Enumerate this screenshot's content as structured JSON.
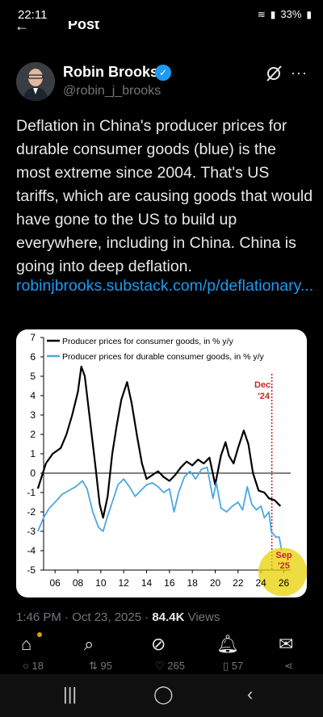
{
  "status": {
    "time": "22:11",
    "battery": "33%"
  },
  "header": {
    "title": "Post"
  },
  "author": {
    "name": "Robin Brooks",
    "handle": "@robin_j_brooks"
  },
  "tweet": {
    "text": "Deflation in China's producer prices for durable consumer goods (blue) is the most extreme since 2004. That's US tariffs, which are causing goods that would have gone to the US to build up everywhere, including in China. China is going into deep deflation.",
    "link": "robinjbrooks.substack.com/p/deflationary..."
  },
  "meta": {
    "time": "1:46 PM · Oct 23, 2025 · ",
    "views": "84.4K",
    "views_label": " Views"
  },
  "actions": {
    "replies": "18",
    "reposts": "95",
    "likes": "265",
    "bookmarks": "57"
  },
  "colors": {
    "accent": "#1d9bf0",
    "series1": "#000000",
    "series2": "#4aa8e0",
    "marker": "#c62828"
  },
  "chart_data": {
    "type": "line",
    "ylim": [
      -5,
      7
    ],
    "yticks": [
      7,
      6,
      5,
      4,
      3,
      2,
      1,
      0,
      -1,
      -2,
      -3,
      -4,
      -5
    ],
    "xticks": [
      "06",
      "08",
      "10",
      "12",
      "14",
      "16",
      "18",
      "20",
      "22",
      "24",
      "26"
    ],
    "series": [
      {
        "name": "Producer prices for consumer goods, in % y/y",
        "points": [
          [
            2004.5,
            -0.8
          ],
          [
            2005.2,
            0.5
          ],
          [
            2005.8,
            1.0
          ],
          [
            2006.5,
            1.3
          ],
          [
            2007.0,
            2.0
          ],
          [
            2007.5,
            3.0
          ],
          [
            2008.0,
            4.2
          ],
          [
            2008.3,
            5.5
          ],
          [
            2008.6,
            5.0
          ],
          [
            2009.0,
            3.0
          ],
          [
            2009.5,
            0.5
          ],
          [
            2009.9,
            -1.6
          ],
          [
            2010.2,
            -2.3
          ],
          [
            2010.6,
            -1.2
          ],
          [
            2011.0,
            1.0
          ],
          [
            2011.4,
            2.5
          ],
          [
            2011.8,
            3.8
          ],
          [
            2012.3,
            4.7
          ],
          [
            2012.7,
            3.6
          ],
          [
            2013.2,
            1.8
          ],
          [
            2013.6,
            0.5
          ],
          [
            2014.0,
            -0.3
          ],
          [
            2014.5,
            -0.1
          ],
          [
            2015.0,
            0.1
          ],
          [
            2015.5,
            -0.2
          ],
          [
            2016.0,
            -0.4
          ],
          [
            2016.5,
            -0.1
          ],
          [
            2017.0,
            0.3
          ],
          [
            2017.5,
            0.6
          ],
          [
            2018.0,
            0.4
          ],
          [
            2018.5,
            0.7
          ],
          [
            2019.0,
            0.5
          ],
          [
            2019.5,
            0.8
          ],
          [
            2020.0,
            -0.6
          ],
          [
            2020.5,
            0.9
          ],
          [
            2020.9,
            1.6
          ],
          [
            2021.2,
            0.9
          ],
          [
            2021.6,
            0.5
          ],
          [
            2022.0,
            1.3
          ],
          [
            2022.5,
            2.2
          ],
          [
            2022.9,
            1.5
          ],
          [
            2023.3,
            0.0
          ],
          [
            2023.8,
            -0.9
          ],
          [
            2024.3,
            -1.0
          ],
          [
            2024.7,
            -1.3
          ],
          [
            2025.2,
            -1.4
          ],
          [
            2025.7,
            -1.7
          ]
        ]
      },
      {
        "name": "Producer prices for durable consumer goods, in % y/y",
        "points": [
          [
            2004.5,
            -3.0
          ],
          [
            2005.0,
            -2.3
          ],
          [
            2005.5,
            -1.8
          ],
          [
            2006.0,
            -1.5
          ],
          [
            2006.6,
            -1.1
          ],
          [
            2007.2,
            -0.9
          ],
          [
            2007.8,
            -0.7
          ],
          [
            2008.4,
            -0.4
          ],
          [
            2008.8,
            -0.8
          ],
          [
            2009.3,
            -2.0
          ],
          [
            2009.8,
            -2.8
          ],
          [
            2010.2,
            -3.0
          ],
          [
            2010.6,
            -2.2
          ],
          [
            2011.0,
            -1.5
          ],
          [
            2011.5,
            -0.6
          ],
          [
            2012.0,
            -0.3
          ],
          [
            2012.5,
            -0.7
          ],
          [
            2013.0,
            -1.2
          ],
          [
            2013.5,
            -0.9
          ],
          [
            2014.0,
            -0.6
          ],
          [
            2014.5,
            -0.5
          ],
          [
            2015.0,
            -0.7
          ],
          [
            2015.5,
            -1.0
          ],
          [
            2016.0,
            -0.8
          ],
          [
            2016.4,
            -2.0
          ],
          [
            2016.8,
            -1.0
          ],
          [
            2017.3,
            -0.2
          ],
          [
            2017.8,
            0.1
          ],
          [
            2018.3,
            -0.3
          ],
          [
            2018.8,
            0.2
          ],
          [
            2019.3,
            0.3
          ],
          [
            2019.8,
            -1.3
          ],
          [
            2020.1,
            -0.5
          ],
          [
            2020.5,
            -1.8
          ],
          [
            2021.0,
            -2.0
          ],
          [
            2021.5,
            -1.7
          ],
          [
            2022.0,
            -1.5
          ],
          [
            2022.4,
            -1.9
          ],
          [
            2022.8,
            -0.7
          ],
          [
            2023.2,
            -1.6
          ],
          [
            2023.6,
            -1.9
          ],
          [
            2024.0,
            -1.7
          ],
          [
            2024.3,
            -2.3
          ],
          [
            2024.7,
            -2.0
          ],
          [
            2024.9,
            -3.0
          ],
          [
            2025.3,
            -3.3
          ],
          [
            2025.6,
            -3.3
          ],
          [
            2025.8,
            -4.0
          ]
        ]
      }
    ],
    "annotations": [
      {
        "text": "Dec. '24",
        "x": 2024.95
      },
      {
        "text": "Sep '25",
        "x": 2025.7
      }
    ]
  }
}
